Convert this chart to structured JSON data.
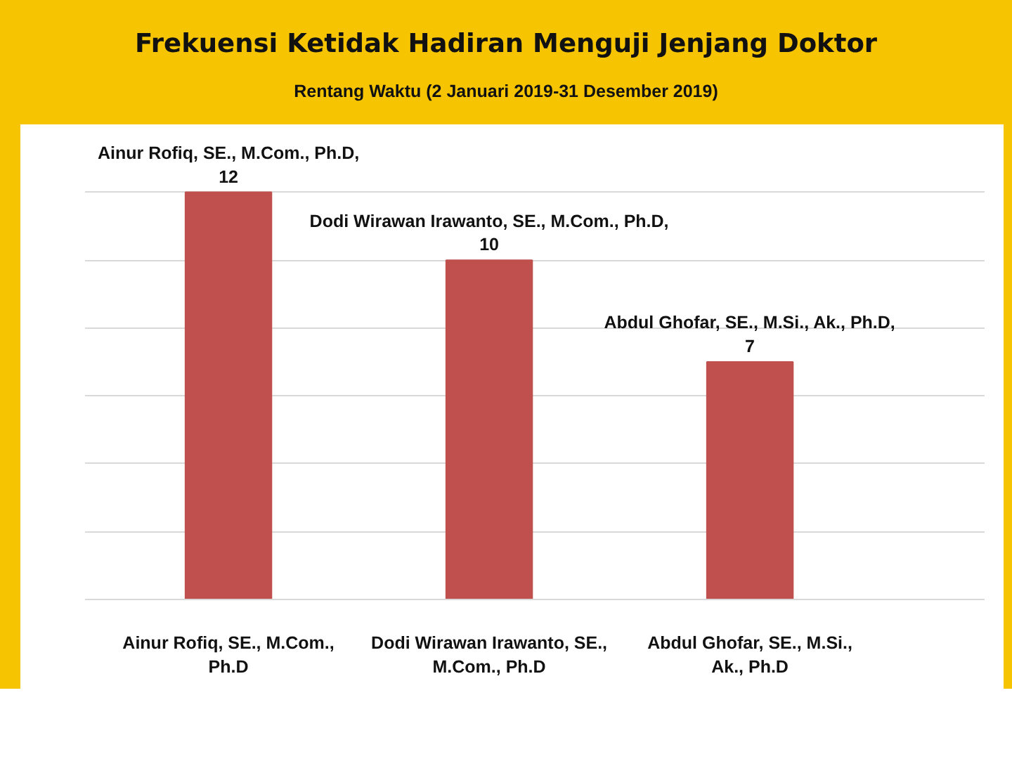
{
  "chart_data": {
    "type": "bar",
    "title": "Frekuensi Ketidak Hadiran Menguji Jenjang Doktor",
    "subtitle": "Rentang Waktu (2 Januari 2019-31 Desember 2019)",
    "categories": [
      "Ainur Rofiq, SE., M.Com., Ph.D",
      "Dodi Wirawan Irawanto, SE., M.Com., Ph.D",
      "Abdul Ghofar, SE., M.Si., Ak., Ph.D"
    ],
    "values": [
      12,
      10,
      7
    ],
    "color": "#c0504d",
    "value_labels": [
      "Ainur Rofiq, SE., M.Com., Ph.D, 12",
      "Dodi Wirawan Irawanto, SE., M.Com., Ph.D, 10",
      "Abdul Ghofar, SE., M.Si., Ak., Ph.D, 7"
    ],
    "ylim": [
      0,
      14
    ],
    "yticks": [
      {
        "value": 0,
        "label": null
      },
      {
        "value": 2,
        "label": null
      },
      {
        "value": 4,
        "label": null
      },
      {
        "value": 6,
        "label": null
      },
      {
        "value": 8,
        "label": null
      },
      {
        "value": 10,
        "label": null
      },
      {
        "value": 12,
        "label": null
      }
    ],
    "tick_labels": "x",
    "grid": "y"
  }
}
